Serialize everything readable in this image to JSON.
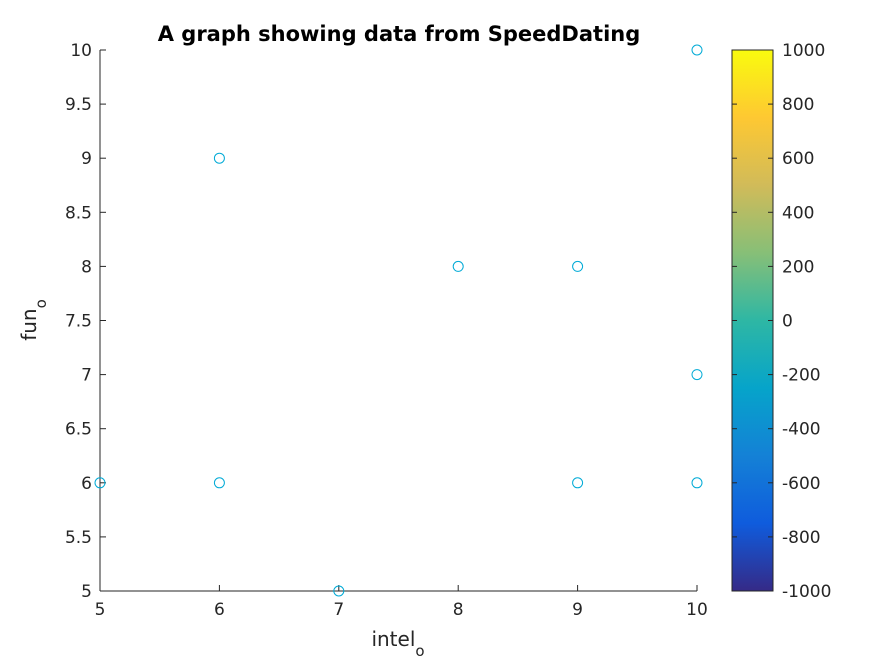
{
  "chart_data": {
    "type": "scatter",
    "title": "A graph showing data from SpeedDating",
    "xlabel": {
      "base": "intel",
      "subscript": "o"
    },
    "ylabel": {
      "base": "fun",
      "subscript": "o"
    },
    "xlim": [
      5,
      10
    ],
    "ylim": [
      5,
      10
    ],
    "xticks": [
      "5",
      "6",
      "7",
      "8",
      "9",
      "10"
    ],
    "yticks": [
      "5",
      "5.5",
      "6",
      "6.5",
      "7",
      "7.5",
      "8",
      "8.5",
      "9",
      "9.5",
      "10"
    ],
    "grid": false,
    "marker": "circle-open",
    "marker_color": "#00AAD6",
    "points": [
      {
        "x": 5,
        "y": 6
      },
      {
        "x": 6,
        "y": 9
      },
      {
        "x": 6,
        "y": 6
      },
      {
        "x": 7,
        "y": 5
      },
      {
        "x": 8,
        "y": 8
      },
      {
        "x": 9,
        "y": 8
      },
      {
        "x": 9,
        "y": 6
      },
      {
        "x": 10,
        "y": 10
      },
      {
        "x": 10,
        "y": 7
      },
      {
        "x": 10,
        "y": 6
      }
    ],
    "colorbar": {
      "colormap": "parula",
      "range": [
        -1000,
        1000
      ],
      "ticks": [
        "1000",
        "800",
        "600",
        "400",
        "200",
        "0",
        "-200",
        "-400",
        "-600",
        "-800",
        "-1000"
      ],
      "colors": [
        "#352A87",
        "#0F5CDD",
        "#1481D6",
        "#06A4CA",
        "#2EB7A4",
        "#87BF77",
        "#D1BB59",
        "#FEC832",
        "#F9FB0E"
      ]
    }
  }
}
